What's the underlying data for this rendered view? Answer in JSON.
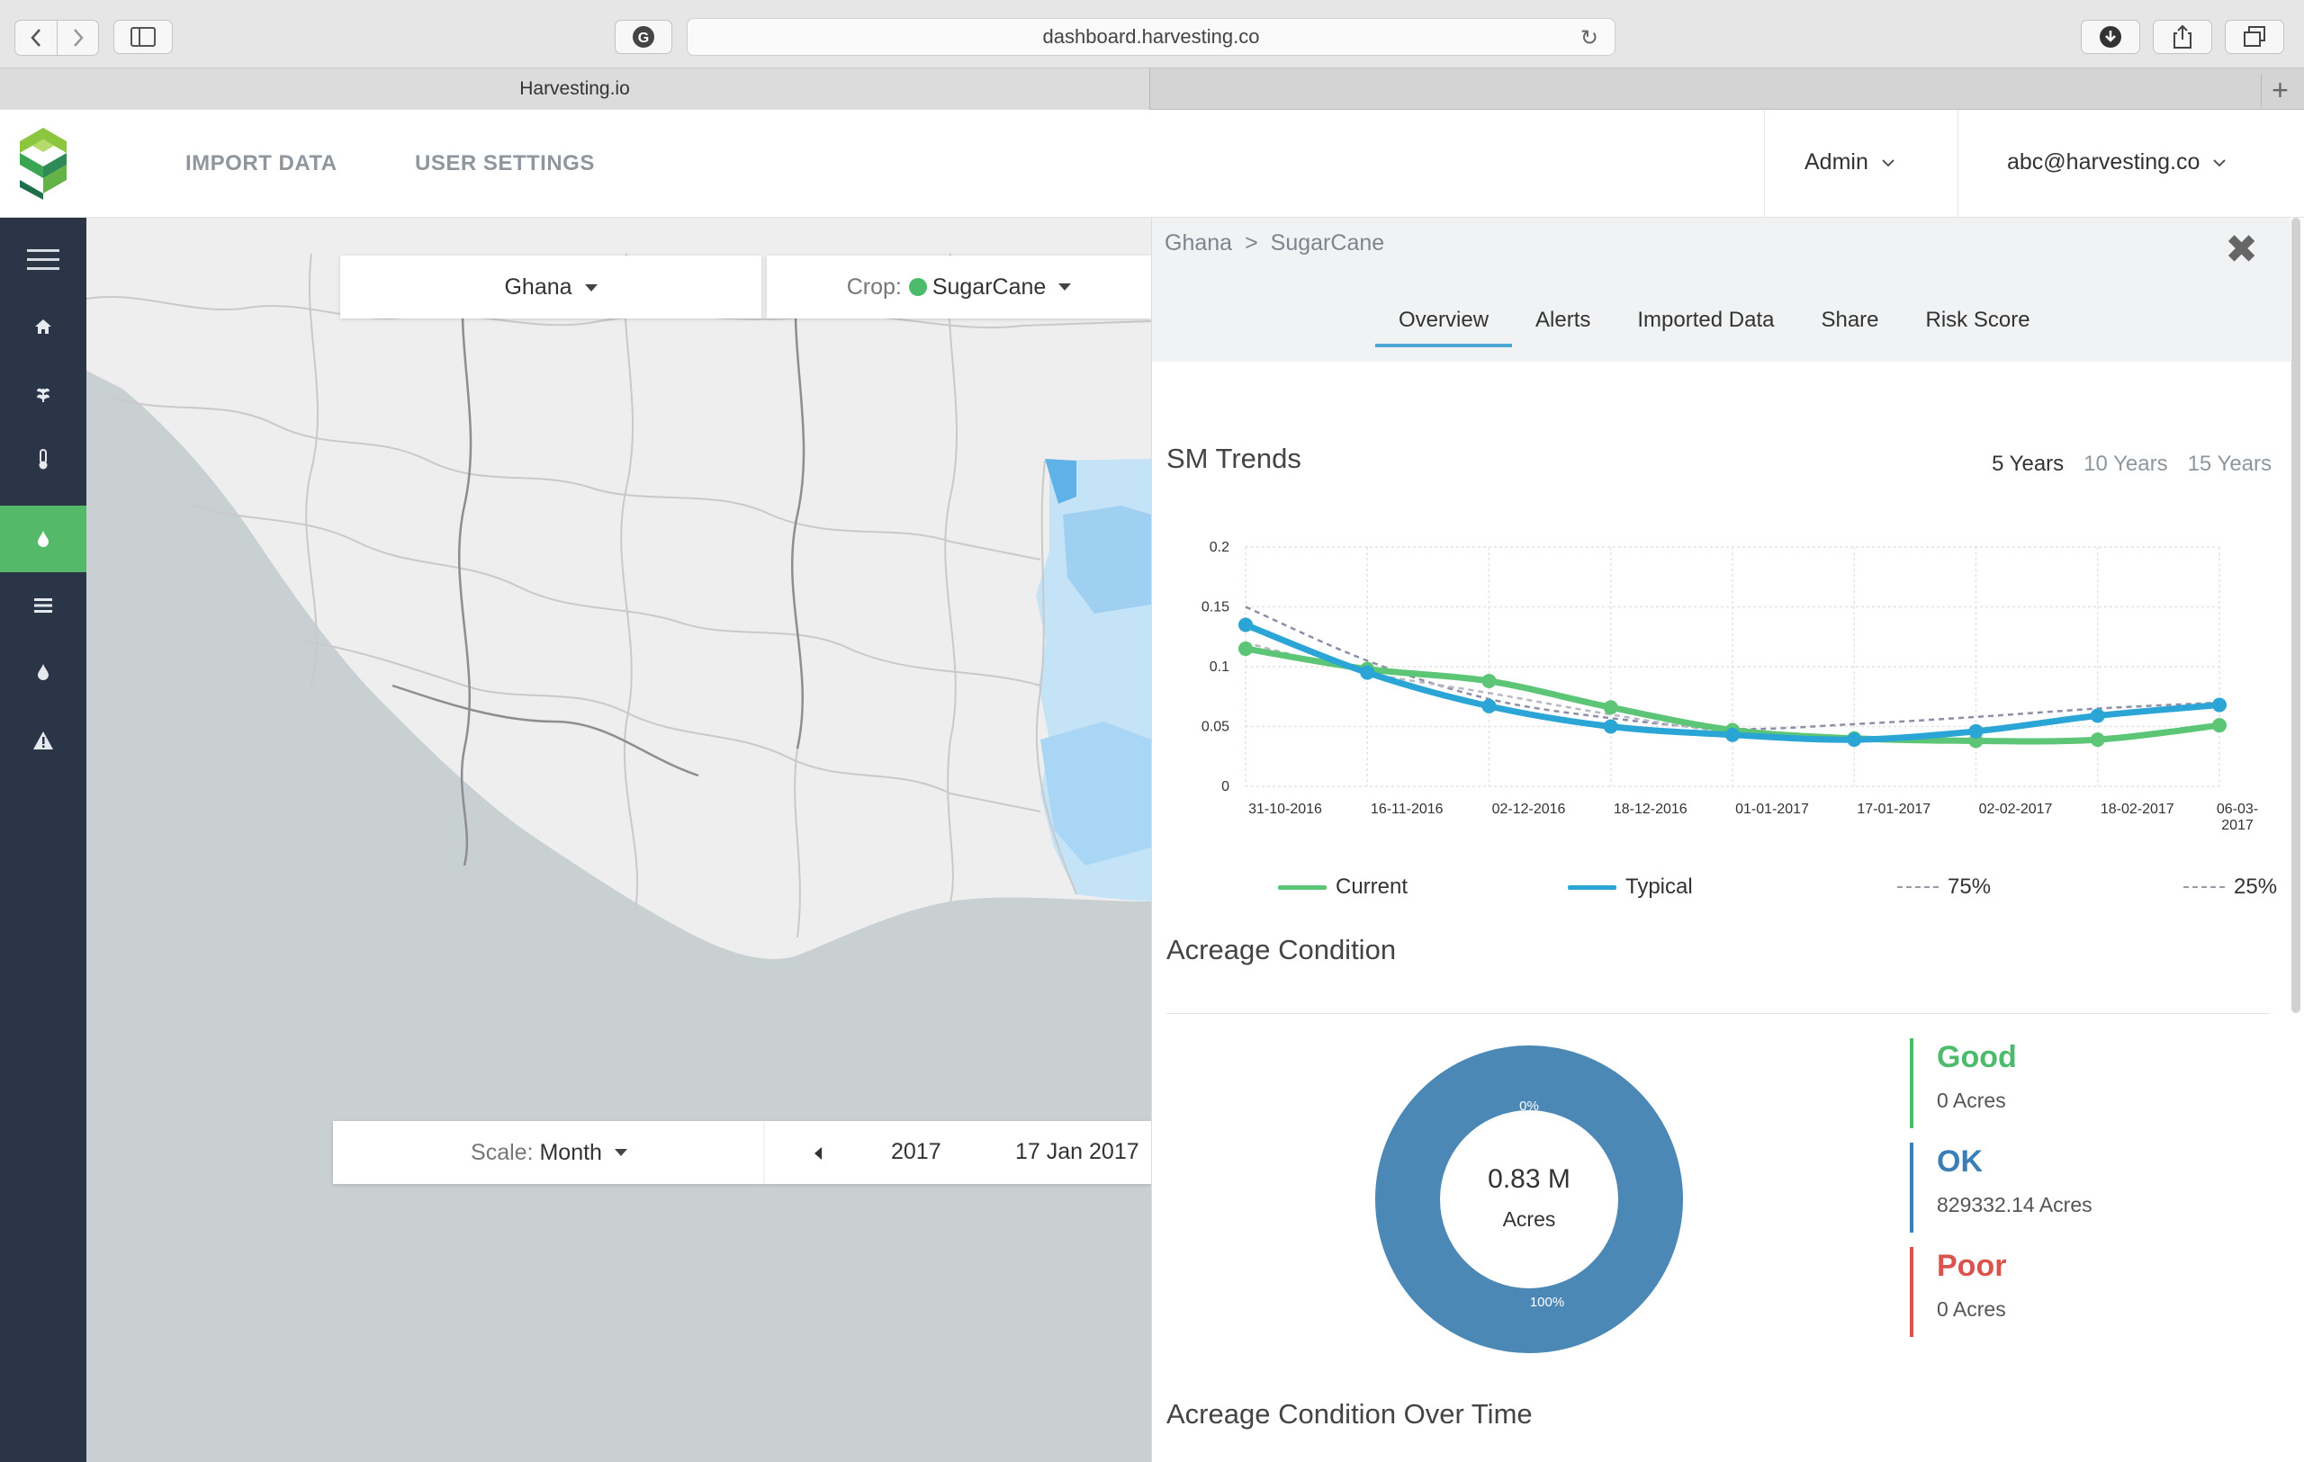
{
  "browser": {
    "url": "dashboard.harvesting.co",
    "tab_title": "Harvesting.io"
  },
  "header": {
    "nav": [
      "IMPORT DATA",
      "USER SETTINGS"
    ],
    "role_menu": "Admin",
    "user_menu": "abc@harvesting.co"
  },
  "sidebar": {
    "items": [
      "menu-icon",
      "home-icon",
      "crop-icon",
      "thermometer-icon",
      "moisture-icon",
      "list-icon",
      "water-drop-icon",
      "alert-icon"
    ],
    "active_index": 4
  },
  "map": {
    "country": "Ghana",
    "crop_label": "Crop:",
    "crop": "SugarCane",
    "crop_color": "#4cbb6c",
    "scale_label": "Scale:",
    "scale": "Month",
    "date_partial": "2017",
    "date": "17 Jan 2017"
  },
  "panel": {
    "breadcrumb": [
      "Ghana",
      ">",
      "SugarCane"
    ],
    "tabs": [
      "Overview",
      "Alerts",
      "Imported Data",
      "Share",
      "Risk Score"
    ],
    "active_tab": "Overview",
    "sm_title": "SM Trends",
    "ranges": [
      "5 Years",
      "10 Years",
      "15 Years"
    ],
    "active_range": "5 Years",
    "legend": [
      "Current",
      "Typical",
      "75%",
      "25%"
    ],
    "acreage_title": "Acreage Condition",
    "acreage_over_time_title": "Acreage Condition Over Time",
    "donut": {
      "total": "0.83 M",
      "unit": "Acres",
      "label_top": "0%",
      "label_bottom": "100%"
    },
    "conditions": [
      {
        "name": "Good",
        "value": "0 Acres",
        "color": "#4cbb6c"
      },
      {
        "name": "OK",
        "value": "829332.14 Acres",
        "color": "#3b7fb6"
      },
      {
        "name": "Poor",
        "value": "0 Acres",
        "color": "#d9534f"
      }
    ]
  },
  "chart_data": {
    "type": "line",
    "title": "SM Trends",
    "categories": [
      "31-10-2016",
      "16-11-2016",
      "02-12-2016",
      "18-12-2016",
      "01-01-2017",
      "17-01-2017",
      "02-02-2017",
      "18-02-2017",
      "06-03-2017"
    ],
    "x_tick_labels": [
      "31-10-2016",
      "16-11-2016",
      "02-12-2016",
      "18-12-2016",
      "01-01-2017",
      "17-01-2017",
      "02-02-2017",
      "18-02-2017",
      "06-03-\n2017"
    ],
    "y_ticks": [
      "0.2",
      "0.15",
      "0.1",
      "0.05",
      "0"
    ],
    "ylim": [
      0,
      0.2
    ],
    "grid": true,
    "series": [
      {
        "name": "Current",
        "color": "#5cc576",
        "values": [
          0.115,
          0.098,
          0.088,
          0.066,
          0.047,
          0.04,
          0.038,
          0.039,
          0.051
        ],
        "style": "solid"
      },
      {
        "name": "Typical",
        "color": "#2aa5d6",
        "values": [
          0.135,
          0.095,
          0.067,
          0.05,
          0.043,
          0.039,
          0.046,
          0.059,
          0.068
        ],
        "style": "solid"
      },
      {
        "name": "75%",
        "color": "#8e8ea8",
        "values": [
          0.15,
          0.105,
          0.073,
          0.057,
          0.048,
          0.052,
          0.058,
          0.065,
          0.07
        ],
        "style": "dashed"
      },
      {
        "name": "25%",
        "color": "#b7b7c6",
        "values": [
          0.12,
          0.095,
          0.078,
          0.06,
          0.045,
          0.04,
          0.037,
          0.04,
          0.052
        ],
        "style": "dashed"
      }
    ]
  }
}
